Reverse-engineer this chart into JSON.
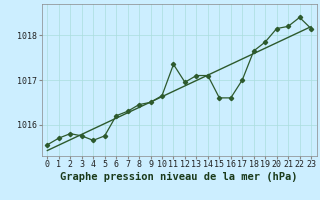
{
  "title": "Graphe pression niveau de la mer (hPa)",
  "bg_color": "#cceeff",
  "grid_color": "#aadddd",
  "line_color": "#2d5a2d",
  "xlim": [
    -0.5,
    23.5
  ],
  "ylim": [
    1015.3,
    1018.7
  ],
  "yticks": [
    1016,
    1017,
    1018
  ],
  "xticks": [
    0,
    1,
    2,
    3,
    4,
    5,
    6,
    7,
    8,
    9,
    10,
    11,
    12,
    13,
    14,
    15,
    16,
    17,
    18,
    19,
    20,
    21,
    22,
    23
  ],
  "hours": [
    0,
    1,
    2,
    3,
    4,
    5,
    6,
    7,
    8,
    9,
    10,
    11,
    12,
    13,
    14,
    15,
    16,
    17,
    18,
    19,
    20,
    21,
    22,
    23
  ],
  "pressure_main": [
    1015.55,
    1015.7,
    1015.8,
    1015.75,
    1015.65,
    1015.75,
    1016.2,
    1016.3,
    1016.45,
    1016.5,
    1016.65,
    1017.35,
    1016.95,
    1017.1,
    1017.1,
    1016.6,
    1016.6,
    1017.0,
    1017.65,
    1017.85,
    1018.15,
    1018.2,
    1018.4,
    1018.15
  ],
  "tick_fontsize": 6,
  "title_fontsize": 7.5
}
